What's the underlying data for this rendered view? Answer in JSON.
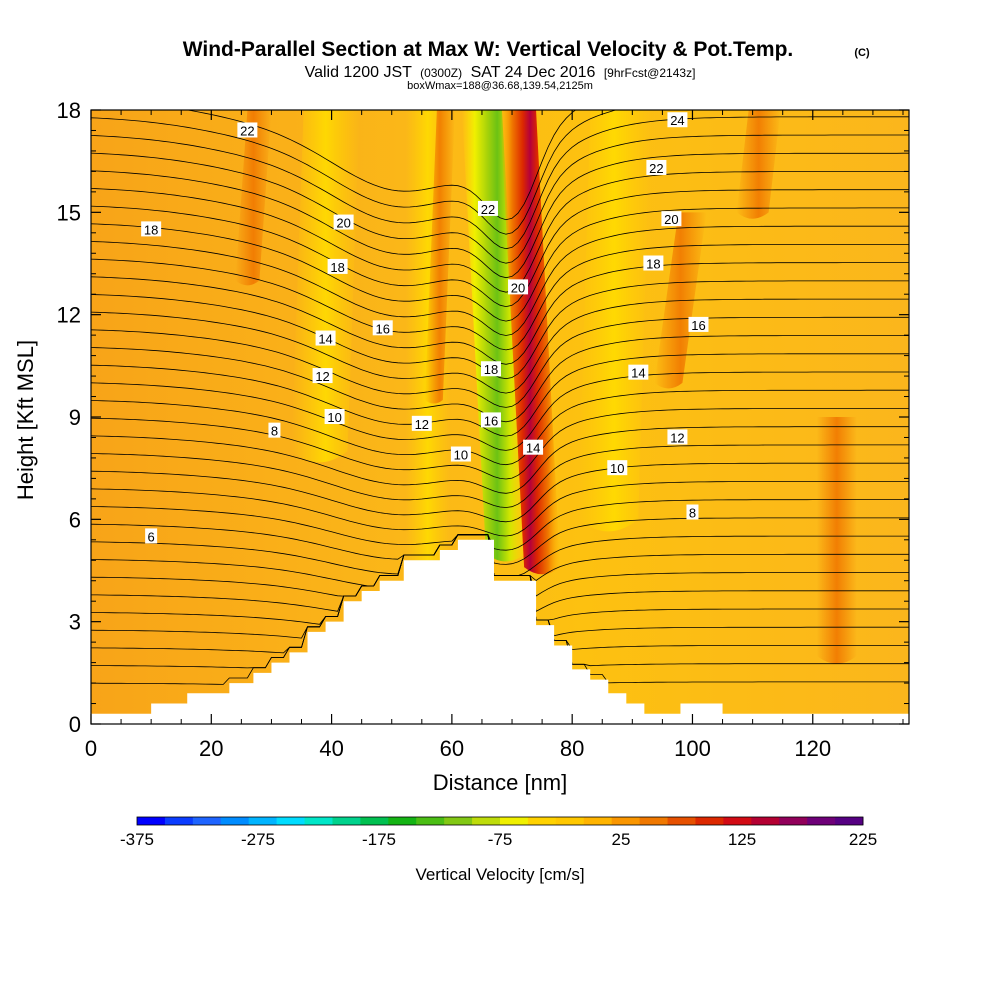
{
  "title": {
    "main": "Wind-Parallel Section at Max W: Vertical Velocity & Pot.Temp.",
    "copyright": "(C)",
    "valid_prefix": "Valid 1200 JST",
    "utc": "(0300Z)",
    "valid_date": "SAT 24 Dec 2016",
    "forecast": "[9hrFcst@2143z]",
    "box_info": "boxWmax=188@36.68,139.54,2125m"
  },
  "chart_data": {
    "type": "contour-section",
    "xlabel": "Distance [nm]",
    "ylabel": "Height [Kft MSL]",
    "xlim": [
      0,
      136
    ],
    "ylim": [
      0,
      18
    ],
    "x_ticks": [
      0,
      20,
      40,
      60,
      80,
      100,
      120
    ],
    "y_ticks": [
      0,
      3,
      6,
      9,
      12,
      15,
      18
    ],
    "terrain": {
      "distance_nm": [
        0,
        10,
        10,
        16,
        16,
        23,
        23,
        27,
        27,
        30,
        30,
        33,
        33,
        36,
        36,
        39,
        39,
        42,
        42,
        45,
        45,
        48,
        48,
        52,
        52,
        58,
        58,
        61,
        61,
        67,
        67,
        71,
        71,
        74,
        74,
        77,
        77,
        80,
        80,
        83,
        83,
        86,
        86,
        89,
        89,
        92,
        92,
        98,
        98,
        105,
        105,
        115,
        115,
        136
      ],
      "height_kft": [
        0.3,
        0.3,
        0.6,
        0.6,
        0.9,
        0.9,
        1.2,
        1.2,
        1.5,
        1.5,
        1.8,
        1.8,
        2.1,
        2.1,
        2.7,
        2.7,
        3.0,
        3.0,
        3.6,
        3.6,
        3.9,
        3.9,
        4.2,
        4.2,
        4.8,
        4.8,
        5.1,
        5.1,
        5.4,
        5.4,
        4.2,
        4.2,
        4.2,
        4.2,
        2.9,
        2.9,
        2.3,
        2.3,
        1.6,
        1.6,
        1.3,
        1.3,
        0.9,
        0.9,
        0.6,
        0.6,
        0.3,
        0.3,
        0.6,
        0.6,
        0.3,
        0.3,
        0.3,
        0.3
      ]
    },
    "vertical_velocity_features": [
      {
        "center_nm": 74,
        "top_kft": 18,
        "bottom_kft": 4.5,
        "peak_cm_s": 188,
        "sign": "updraft"
      },
      {
        "center_nm": 66,
        "top_kft": 18,
        "bottom_kft": 5.0,
        "peak_cm_s": -175,
        "sign": "downdraft"
      },
      {
        "center_nm": 58,
        "top_kft": 18,
        "bottom_kft": 10,
        "peak_cm_s": 90,
        "sign": "updraft"
      },
      {
        "center_nm": 112,
        "top_kft": 18,
        "bottom_kft": 15,
        "peak_cm_s": 90,
        "sign": "updraft"
      },
      {
        "center_nm": 44,
        "top_kft": 18,
        "bottom_kft": 4,
        "peak_cm_s": -40,
        "sign": "downdraft"
      }
    ],
    "theta_contour_labels": [
      {
        "text": "22",
        "x": 26,
        "y": 17.4
      },
      {
        "text": "18",
        "x": 10,
        "y": 14.5
      },
      {
        "text": "20",
        "x": 42,
        "y": 14.7
      },
      {
        "text": "18",
        "x": 41,
        "y": 13.4
      },
      {
        "text": "16",
        "x": 48.5,
        "y": 11.6
      },
      {
        "text": "14",
        "x": 39,
        "y": 11.3
      },
      {
        "text": "12",
        "x": 38.5,
        "y": 10.2
      },
      {
        "text": "10",
        "x": 40.5,
        "y": 9.0
      },
      {
        "text": "8",
        "x": 30.5,
        "y": 8.6
      },
      {
        "text": "6",
        "x": 10,
        "y": 5.5
      },
      {
        "text": "22",
        "x": 66,
        "y": 15.1
      },
      {
        "text": "20",
        "x": 71,
        "y": 12.8
      },
      {
        "text": "18",
        "x": 66.5,
        "y": 10.4
      },
      {
        "text": "16",
        "x": 66.5,
        "y": 8.9
      },
      {
        "text": "14",
        "x": 73.5,
        "y": 8.1
      },
      {
        "text": "12",
        "x": 55,
        "y": 8.8
      },
      {
        "text": "10",
        "x": 61.5,
        "y": 7.9
      },
      {
        "text": "24",
        "x": 97.5,
        "y": 17.7
      },
      {
        "text": "22",
        "x": 94,
        "y": 16.3
      },
      {
        "text": "20",
        "x": 96.5,
        "y": 14.8
      },
      {
        "text": "18",
        "x": 93.5,
        "y": 13.5
      },
      {
        "text": "16",
        "x": 101,
        "y": 11.7
      },
      {
        "text": "14",
        "x": 91,
        "y": 10.3
      },
      {
        "text": "12",
        "x": 97.5,
        "y": 8.4
      },
      {
        "text": "10",
        "x": 87.5,
        "y": 7.5
      },
      {
        "text": "8",
        "x": 100,
        "y": 6.2
      }
    ]
  },
  "colorbar": {
    "title": "Vertical Velocity [cm/s]",
    "tick_labels": [
      "-375",
      "-275",
      "-175",
      "-75",
      "25",
      "125",
      "225"
    ],
    "colors": [
      "#0000ff",
      "#0a3cff",
      "#1e64ff",
      "#008cff",
      "#00b4ff",
      "#00dcff",
      "#00e6c8",
      "#00d28c",
      "#00c050",
      "#14b414",
      "#4bbe14",
      "#82c814",
      "#bedc0a",
      "#f0f000",
      "#ffd200",
      "#ffc800",
      "#ffb400",
      "#fa9600",
      "#f07800",
      "#e65000",
      "#dc2800",
      "#d20a14",
      "#b40032",
      "#91005a",
      "#6e0078",
      "#550082"
    ]
  }
}
